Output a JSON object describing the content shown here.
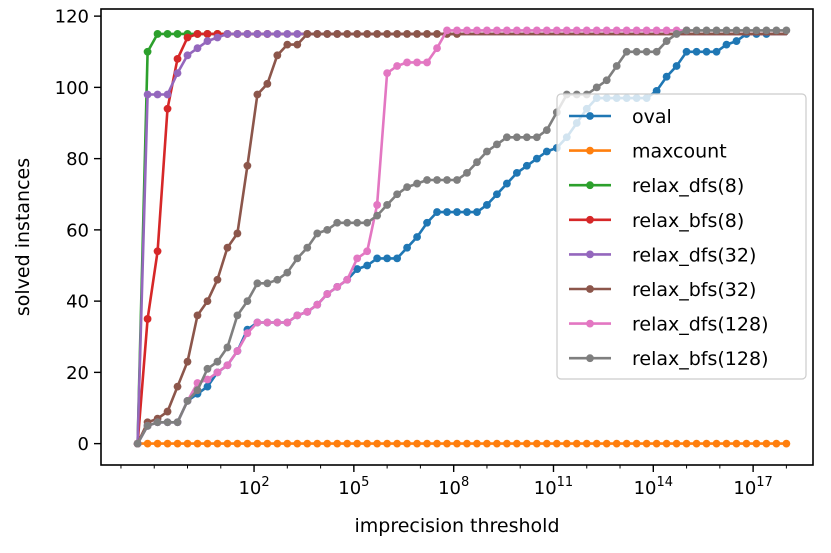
{
  "chart_data": {
    "type": "line",
    "title": "",
    "xlabel": "imprecision threshold",
    "ylabel": "solved instances",
    "xscale": "log10",
    "xlim_log10": [
      -2.6,
      18.8
    ],
    "ylim": [
      -6,
      122
    ],
    "xticks": [
      {
        "value": 2,
        "base": "10",
        "exp": "2"
      },
      {
        "value": 5,
        "base": "10",
        "exp": "5"
      },
      {
        "value": 8,
        "base": "10",
        "exp": "8"
      },
      {
        "value": 11,
        "base": "10",
        "exp": "11"
      },
      {
        "value": 14,
        "base": "10",
        "exp": "14"
      },
      {
        "value": 17,
        "base": "10",
        "exp": "17"
      }
    ],
    "yticks": [
      {
        "value": 0,
        "label": "0"
      },
      {
        "value": 20,
        "label": "20"
      },
      {
        "value": 40,
        "label": "40"
      },
      {
        "value": 60,
        "label": "60"
      },
      {
        "value": 80,
        "label": "80"
      },
      {
        "value": 100,
        "label": "100"
      },
      {
        "value": 120,
        "label": "120"
      }
    ],
    "grid": false,
    "legend_position": "center-right",
    "series": [
      {
        "name": "oval",
        "color": "#1f77b4",
        "x": [
          -1.5,
          -1.2,
          -0.9,
          -0.6,
          -0.3,
          0,
          0.3,
          0.6,
          0.9,
          1.2,
          1.5,
          1.8,
          2.1,
          2.4,
          2.7,
          3,
          3.3,
          3.6,
          3.9,
          4.2,
          4.5,
          4.8,
          5.1,
          5.4,
          5.7,
          6,
          6.3,
          6.6,
          6.9,
          7.2,
          7.5,
          7.8,
          8.1,
          8.4,
          8.7,
          9,
          9.3,
          9.6,
          9.9,
          10.2,
          10.5,
          10.8,
          11.1,
          11.4,
          11.7,
          12,
          12.3,
          12.6,
          12.9,
          13.2,
          13.5,
          13.8,
          14.1,
          14.4,
          14.7,
          15,
          15.3,
          15.6,
          15.9,
          16.2,
          16.5,
          16.8,
          17.1,
          17.4,
          17.7,
          18
        ],
        "y": [
          0,
          5,
          6,
          6,
          6,
          12,
          14,
          16,
          20,
          22,
          26,
          32,
          34,
          34,
          34,
          34,
          36,
          37,
          39,
          42,
          44,
          46,
          49,
          50,
          52,
          52,
          52,
          55,
          58,
          62,
          65,
          65,
          65,
          65,
          65,
          67,
          70,
          73,
          76,
          78,
          80,
          82,
          83,
          86,
          90,
          94,
          97,
          97,
          97,
          97,
          97,
          97,
          99,
          103,
          106,
          110,
          110,
          110,
          110,
          112,
          113,
          115,
          115,
          115,
          115,
          115
        ],
        "endpoint_only": [
          64,
          65
        ]
      },
      {
        "name": "maxcount",
        "color": "#ff7f0e",
        "x": [
          -1.5,
          -1.2,
          -0.9,
          -0.6,
          -0.3,
          0,
          0.3,
          0.6,
          0.9,
          1.2,
          1.5,
          1.8,
          2.1,
          2.4,
          2.7,
          3,
          3.3,
          3.6,
          3.9,
          4.2,
          4.5,
          4.8,
          5.1,
          5.4,
          5.7,
          6,
          6.3,
          6.6,
          6.9,
          7.2,
          7.5,
          7.8,
          8.1,
          8.4,
          8.7,
          9,
          9.3,
          9.6,
          9.9,
          10.2,
          10.5,
          10.8,
          11.1,
          11.4,
          11.7,
          12,
          12.3,
          12.6,
          12.9,
          13.2,
          13.5,
          13.8,
          14.1,
          14.4,
          14.7,
          15,
          15.3,
          15.6,
          15.9,
          16.2,
          16.5,
          16.8,
          17.1,
          17.4,
          17.7,
          18
        ],
        "y": [
          0,
          0,
          0,
          0,
          0,
          0,
          0,
          0,
          0,
          0,
          0,
          0,
          0,
          0,
          0,
          0,
          0,
          0,
          0,
          0,
          0,
          0,
          0,
          0,
          0,
          0,
          0,
          0,
          0,
          0,
          0,
          0,
          0,
          0,
          0,
          0,
          0,
          0,
          0,
          0,
          0,
          0,
          0,
          0,
          0,
          0,
          0,
          0,
          0,
          0,
          0,
          0,
          0,
          0,
          0,
          0,
          0,
          0,
          0,
          0,
          0,
          0,
          0,
          0,
          0,
          0
        ]
      },
      {
        "name": "relax_dfs(8)",
        "color": "#2ca02c",
        "x": [
          -1.5,
          -1.2,
          -0.9,
          -0.6,
          -0.3,
          0,
          0.3,
          0.6,
          0.9,
          18
        ],
        "y": [
          0,
          110,
          115,
          115,
          115,
          115,
          115,
          115,
          115,
          115
        ],
        "endpoint_only": [
          9
        ]
      },
      {
        "name": "relax_bfs(8)",
        "color": "#d62728",
        "x": [
          -1.5,
          -1.2,
          -0.9,
          -0.6,
          -0.3,
          0,
          0.3,
          0.6,
          0.9,
          1.2,
          1.5,
          1.8,
          2.1,
          2.4,
          18
        ],
        "y": [
          0,
          35,
          54,
          94,
          108,
          114,
          115,
          115,
          115,
          115,
          115,
          115,
          115,
          115,
          115
        ],
        "endpoint_only": [
          14
        ]
      },
      {
        "name": "relax_dfs(32)",
        "color": "#9467bd",
        "x": [
          -1.5,
          -1.2,
          -0.9,
          -0.6,
          -0.3,
          0,
          0.3,
          0.6,
          0.9,
          1.2,
          1.5,
          1.8,
          2.1,
          2.4,
          2.7,
          3,
          3.3,
          3.6,
          3.9,
          4.2,
          4.5,
          18
        ],
        "y": [
          0,
          98,
          98,
          98,
          104,
          109,
          111,
          113,
          114,
          115,
          115,
          115,
          115,
          115,
          115,
          115,
          115,
          115,
          115,
          115,
          115,
          115
        ],
        "endpoint_only": [
          21
        ]
      },
      {
        "name": "relax_bfs(32)",
        "color": "#8c564b",
        "x": [
          -1.5,
          -1.2,
          -0.9,
          -0.6,
          -0.3,
          0,
          0.3,
          0.6,
          0.9,
          1.2,
          1.5,
          1.8,
          2.1,
          2.4,
          2.7,
          3,
          3.3,
          3.6,
          3.9,
          4.2,
          4.5,
          4.8,
          5.1,
          5.4,
          5.7,
          6,
          6.3,
          6.6,
          6.9,
          7.2,
          7.5,
          7.8,
          8.1,
          18
        ],
        "y": [
          0,
          6,
          7,
          9,
          16,
          23,
          36,
          40,
          46,
          55,
          59,
          78,
          98,
          101,
          109,
          112,
          112,
          115,
          115,
          115,
          115,
          115,
          115,
          115,
          115,
          115,
          115,
          115,
          115,
          115,
          115,
          115,
          115,
          115
        ],
        "endpoint_only": [
          33
        ]
      },
      {
        "name": "relax_dfs(128)",
        "color": "#e377c2",
        "x": [
          -1.5,
          -1.2,
          -0.9,
          -0.6,
          -0.3,
          0,
          0.3,
          0.6,
          0.9,
          1.2,
          1.5,
          1.8,
          2.1,
          2.4,
          2.7,
          3,
          3.3,
          3.6,
          3.9,
          4.2,
          4.5,
          4.8,
          5.1,
          5.4,
          5.7,
          6,
          6.3,
          6.6,
          6.9,
          7.2,
          7.5,
          7.8,
          8.1,
          8.4,
          8.7,
          9,
          9.3,
          9.6,
          9.9,
          10.2,
          10.5,
          10.8,
          11.1,
          11.4,
          11.7,
          12,
          12.3,
          12.6,
          12.9,
          13.2,
          13.5,
          13.8,
          14.1,
          14.4,
          14.7,
          15
        ],
        "y": [
          0,
          5,
          6,
          6,
          6,
          12,
          17,
          18,
          20,
          22,
          26,
          31,
          34,
          34,
          34,
          34,
          36,
          37,
          39,
          42,
          44,
          46,
          52,
          54,
          67,
          104,
          106,
          107,
          107,
          107,
          111,
          116,
          116,
          116,
          116,
          116,
          116,
          116,
          116,
          116,
          116,
          116,
          116,
          116,
          116,
          116,
          116,
          116,
          116,
          116,
          116,
          116,
          116,
          116,
          116,
          116
        ]
      },
      {
        "name": "relax_bfs(128)",
        "color": "#7f7f7f",
        "x": [
          -1.5,
          -1.2,
          -0.9,
          -0.6,
          -0.3,
          0,
          0.3,
          0.6,
          0.9,
          1.2,
          1.5,
          1.8,
          2.1,
          2.4,
          2.7,
          3,
          3.3,
          3.6,
          3.9,
          4.2,
          4.5,
          4.8,
          5.1,
          5.4,
          5.7,
          6,
          6.3,
          6.6,
          6.9,
          7.2,
          7.5,
          7.8,
          8.1,
          8.4,
          8.7,
          9,
          9.3,
          9.6,
          9.9,
          10.2,
          10.5,
          10.8,
          11.1,
          11.4,
          11.7,
          12,
          12.3,
          12.6,
          12.9,
          13.2,
          13.5,
          13.8,
          14.1,
          14.4,
          14.7,
          15,
          15.3,
          15.6,
          15.9,
          16.2,
          16.5,
          16.8,
          17.1,
          17.4,
          17.7,
          18
        ],
        "y": [
          0,
          5,
          6,
          6,
          6,
          12,
          15,
          21,
          23,
          27,
          36,
          40,
          45,
          45,
          46,
          48,
          52,
          55,
          59,
          60,
          62,
          62,
          62,
          62,
          64,
          67,
          70,
          72,
          73,
          74,
          74,
          74,
          74,
          76,
          79,
          82,
          84,
          86,
          86,
          86,
          86,
          88,
          93,
          98,
          98,
          98,
          100,
          102,
          106,
          110,
          110,
          110,
          110,
          113,
          115,
          116,
          116,
          116,
          116,
          116,
          116,
          116,
          116,
          116,
          116,
          116
        ]
      }
    ]
  }
}
